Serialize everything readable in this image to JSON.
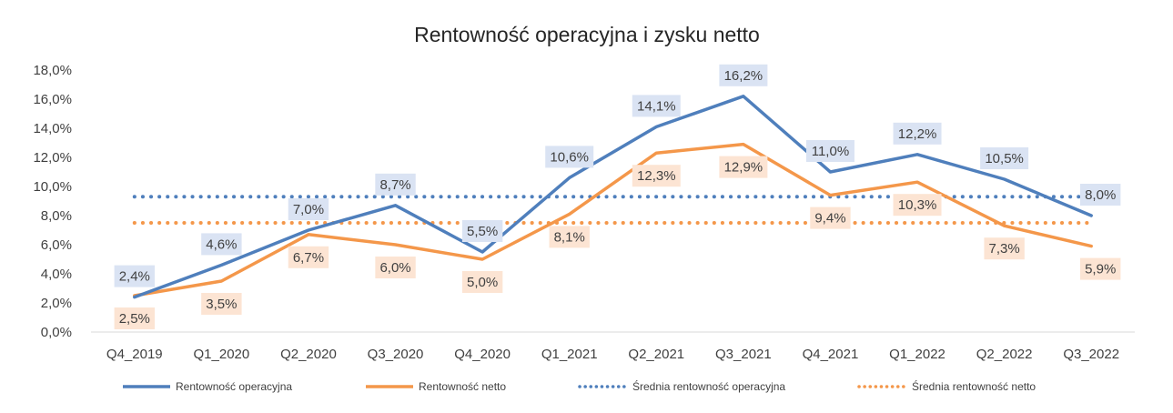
{
  "chart_data": {
    "type": "line",
    "title": "Rentowność operacyjna i zysku netto",
    "categories": [
      "Q4_2019",
      "Q1_2020",
      "Q2_2020",
      "Q3_2020",
      "Q4_2020",
      "Q1_2021",
      "Q2_2021",
      "Q3_2021",
      "Q4_2021",
      "Q1_2022",
      "Q2_2022",
      "Q3_2022"
    ],
    "ylim": [
      0,
      18
    ],
    "yticks": [
      "0,0%",
      "2,0%",
      "4,0%",
      "6,0%",
      "8,0%",
      "10,0%",
      "12,0%",
      "14,0%",
      "16,0%",
      "18,0%"
    ],
    "grid": false,
    "legend_position": "bottom",
    "series": [
      {
        "name": "Rentowność operacyjna",
        "color": "#4f7fbc",
        "style": "solid",
        "values": [
          2.4,
          4.6,
          7.0,
          8.7,
          5.5,
          10.6,
          14.1,
          16.2,
          11.0,
          12.2,
          10.5,
          8.0
        ],
        "labels": [
          "2,4%",
          "4,6%",
          "7,0%",
          "8,7%",
          "5,5%",
          "10,6%",
          "14,1%",
          "16,2%",
          "11,0%",
          "12,2%",
          "10,5%",
          "8,0%"
        ],
        "label_bg": "#dae3f3"
      },
      {
        "name": "Rentowność netto",
        "color": "#f4974a",
        "style": "solid",
        "values": [
          2.5,
          3.5,
          6.7,
          6.0,
          5.0,
          8.1,
          12.3,
          12.9,
          9.4,
          10.3,
          7.3,
          5.9
        ],
        "labels": [
          "2,5%",
          "3,5%",
          "6,7%",
          "6,0%",
          "5,0%",
          "8,1%",
          "12,3%",
          "12,9%",
          "9,4%",
          "10,3%",
          "7,3%",
          "5,9%"
        ],
        "label_bg": "#fce4d3"
      },
      {
        "name": "Średnia rentowność operacyjna",
        "color": "#4f7fbc",
        "style": "dotted",
        "values": [
          9.3,
          9.3,
          9.3,
          9.3,
          9.3,
          9.3,
          9.3,
          9.3,
          9.3,
          9.3,
          9.3,
          9.3
        ]
      },
      {
        "name": "Średnia rentowność netto",
        "color": "#f4974a",
        "style": "dotted",
        "values": [
          7.5,
          7.5,
          7.5,
          7.5,
          7.5,
          7.5,
          7.5,
          7.5,
          7.5,
          7.5,
          7.5,
          7.5
        ]
      }
    ]
  }
}
